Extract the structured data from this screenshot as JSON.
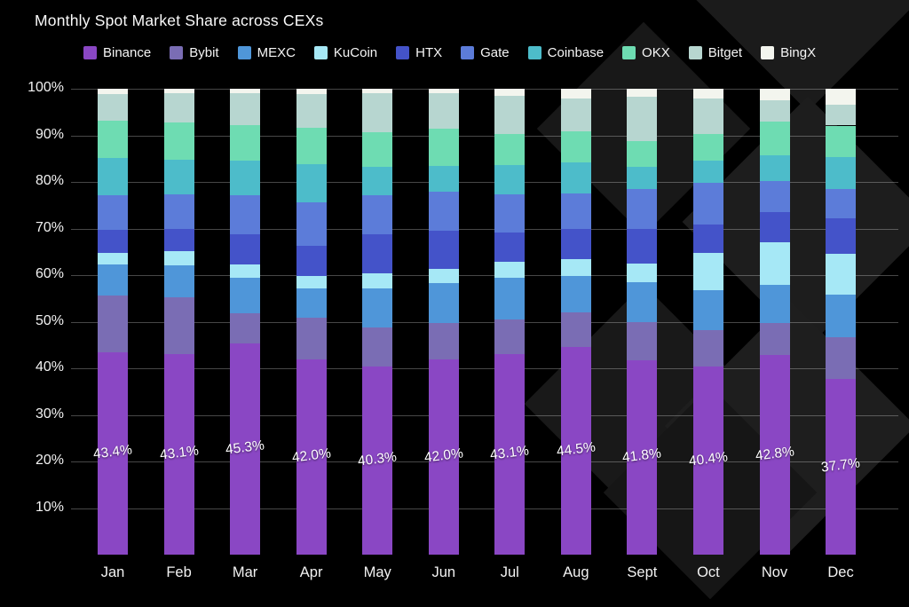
{
  "title": "Monthly Spot Market Share across CEXs",
  "background_color": "#000000",
  "watermark_color": "#1b1b1b",
  "chart_data": {
    "type": "bar",
    "stacked": true,
    "grid": true,
    "legend_position": "top",
    "ylim": [
      0,
      100
    ],
    "y_tick_labels": [
      "10%",
      "20%",
      "30%",
      "40%",
      "50%",
      "60%",
      "70%",
      "80%",
      "90%",
      "100%"
    ],
    "categories": [
      "Jan",
      "Feb",
      "Mar",
      "Apr",
      "May",
      "Jun",
      "Jul",
      "Aug",
      "Sept",
      "Oct",
      "Nov",
      "Dec"
    ],
    "bar_labels": [
      "43.4%",
      "43.1%",
      "45.3%",
      "42.0%",
      "40.3%",
      "42.0%",
      "43.1%",
      "44.5%",
      "41.8%",
      "40.4%",
      "42.8%",
      "37.7%"
    ],
    "series": [
      {
        "name": "Binance",
        "color": "#8a47c4",
        "values": [
          43.4,
          43.1,
          45.3,
          42.0,
          40.3,
          42.0,
          43.1,
          44.5,
          41.8,
          40.4,
          42.8,
          37.7
        ]
      },
      {
        "name": "Bybit",
        "color": "#7a6db4",
        "values": [
          12.2,
          12.2,
          6.6,
          8.8,
          8.5,
          7.8,
          7.4,
          7.5,
          8.2,
          7.8,
          7.0,
          8.9
        ]
      },
      {
        "name": "MEXC",
        "color": "#4f96d9",
        "values": [
          6.7,
          6.8,
          7.5,
          6.4,
          8.4,
          8.4,
          9.0,
          7.8,
          8.5,
          8.5,
          8.2,
          9.3
        ]
      },
      {
        "name": "KuCoin",
        "color": "#a6e8f6",
        "values": [
          2.5,
          3.0,
          2.8,
          2.6,
          3.1,
          3.2,
          3.3,
          3.6,
          4.0,
          8.0,
          9.0,
          8.7
        ]
      },
      {
        "name": "HTX",
        "color": "#4453c9",
        "values": [
          4.9,
          4.8,
          6.6,
          6.5,
          8.5,
          8.2,
          6.3,
          6.6,
          7.5,
          6.2,
          6.5,
          7.5
        ]
      },
      {
        "name": "Gate",
        "color": "#5c7cd9",
        "values": [
          7.4,
          7.5,
          8.3,
          9.3,
          8.3,
          8.3,
          8.2,
          7.6,
          8.4,
          9.0,
          6.6,
          6.4
        ]
      },
      {
        "name": "Coinbase",
        "color": "#4dbcca",
        "values": [
          8.0,
          7.4,
          7.4,
          8.2,
          6.1,
          5.5,
          6.4,
          6.6,
          4.8,
          4.7,
          5.7,
          6.8
        ]
      },
      {
        "name": "OKX",
        "color": "#6edcb2",
        "values": [
          8.1,
          8.0,
          7.6,
          7.9,
          7.4,
          8.0,
          6.6,
          6.6,
          5.6,
          5.6,
          7.2,
          6.8
        ]
      },
      {
        "name": "Bitget",
        "color": "#b7d6d0",
        "values": [
          5.6,
          6.2,
          6.9,
          7.1,
          8.4,
          7.6,
          8.2,
          7.2,
          9.5,
          7.8,
          4.5,
          4.4
        ]
      },
      {
        "name": "BingX",
        "color": "#f3f5ee",
        "values": [
          1.2,
          1.0,
          1.0,
          1.2,
          1.0,
          1.0,
          1.5,
          2.0,
          1.7,
          2.0,
          2.5,
          3.5
        ]
      }
    ]
  }
}
